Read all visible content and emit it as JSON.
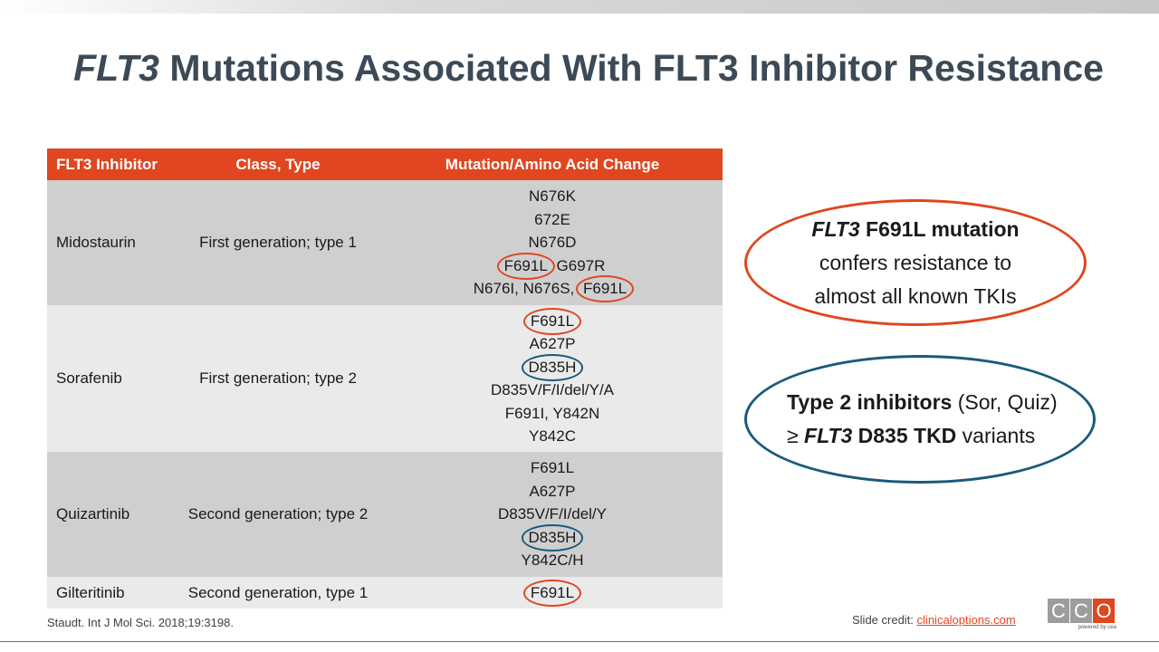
{
  "title": {
    "italic": "FLT3",
    "rest": " Mutations Associated With FLT3 Inhibitor Resistance"
  },
  "table": {
    "headers": [
      "FLT3 Inhibitor",
      "Class, Type",
      "Mutation/Amino Acid Change"
    ],
    "rows": [
      {
        "inhibitor": "Midostaurin",
        "class_type": "First generation; type 1",
        "mutations": [
          "N676K",
          "672E",
          "N676D",
          "F691L",
          "G697R",
          "N676I, N676S,",
          "F691L"
        ]
      },
      {
        "inhibitor": "Sorafenib",
        "class_type": "First generation; type 2",
        "mutations": [
          "F691L",
          "A627P",
          "D835H",
          "D835V/F/I/del/Y/A",
          "F691I, Y842N",
          "Y842C"
        ]
      },
      {
        "inhibitor": "Quizartinib",
        "class_type": "Second generation; type 2",
        "mutations": [
          "F691L",
          "A627P",
          "D835V/F/I/del/Y",
          "D835H",
          "Y842C/H"
        ]
      },
      {
        "inhibitor": "Gilteritinib",
        "class_type": "Second generation, type 1",
        "mutations": [
          "F691L"
        ]
      }
    ]
  },
  "callout1": {
    "gene": "FLT3",
    "bold": " F691L mutation",
    "line2": "confers resistance to",
    "line3": "almost all known TKIs",
    "color": "#e0461f"
  },
  "callout2": {
    "bold1": "Type 2 inhibitors",
    "plain1": " (Sor, Quiz)",
    "symbol": "≥ ",
    "gene": "FLT3",
    "bold2": " D835 TKD",
    "plain2": " variants",
    "color": "#1a5a7a"
  },
  "reference": "Staudt. Int J Mol Sci. 2018;19:3198.",
  "credit": {
    "label": "Slide credit: ",
    "link": "clinicaloptions.com"
  },
  "logo": {
    "letters": [
      "C",
      "C",
      "O"
    ],
    "tagline": "powered by cea"
  },
  "colors": {
    "accent": "#e0461f",
    "title": "#3b4a56",
    "blue": "#1a5a7a"
  }
}
